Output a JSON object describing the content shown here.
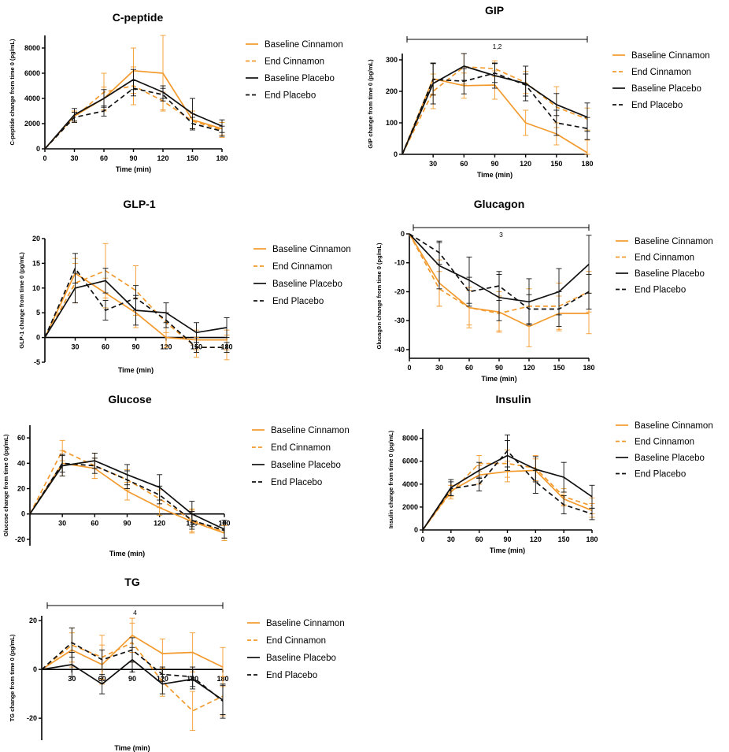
{
  "colors": {
    "cinnamon": "#F39A2D",
    "placebo": "#111111",
    "axis": "#000000"
  },
  "chart_data": [
    {
      "type": "line",
      "title": "C-peptide",
      "xlabel": "Time (min)",
      "ylabel": "C-peptide change from time 0 (pg/mL)",
      "x": [
        0,
        30,
        60,
        90,
        120,
        150,
        180
      ],
      "xticks": [
        "0",
        "30",
        "60",
        "90",
        "120",
        "150",
        "180"
      ],
      "ylim": [
        0,
        9000
      ],
      "yticks": [
        "0",
        "2000",
        "4000",
        "6000",
        "8000"
      ],
      "ytick_values": [
        0,
        2000,
        4000,
        6000,
        8000
      ],
      "legend_position": "right",
      "annotation": "",
      "series": [
        {
          "name": "Baseline Cinnamon",
          "style": "cin-solid",
          "values": [
            0,
            2600,
            4000,
            6200,
            6000,
            2300,
            1600
          ],
          "errors": [
            0,
            400,
            900,
            1800,
            3000,
            700,
            500
          ]
        },
        {
          "name": "End Cinnamon",
          "style": "cin-dash",
          "values": [
            0,
            2500,
            4500,
            5000,
            3800,
            2200,
            1500
          ],
          "errors": [
            0,
            400,
            1500,
            1500,
            700,
            600,
            600
          ]
        },
        {
          "name": "Baseline Placebo",
          "style": "pla-solid",
          "values": [
            0,
            2700,
            4000,
            5500,
            4500,
            2800,
            1800
          ],
          "errors": [
            0,
            500,
            700,
            800,
            500,
            1200,
            500
          ]
        },
        {
          "name": "End Placebo",
          "style": "pla-dash",
          "values": [
            0,
            2500,
            3000,
            4800,
            4300,
            2000,
            1400
          ],
          "errors": [
            0,
            400,
            400,
            600,
            500,
            500,
            400
          ]
        }
      ]
    },
    {
      "type": "line",
      "title": "GIP",
      "xlabel": "Time (min)",
      "ylabel": "GIP change from time 0 (pg/mL)",
      "x": [
        0,
        30,
        60,
        90,
        120,
        150,
        180
      ],
      "xticks": [
        "30",
        "60",
        "90",
        "120",
        "150",
        "180"
      ],
      "xtick_values": [
        30,
        60,
        90,
        120,
        150,
        180
      ],
      "ylim": [
        0,
        320
      ],
      "yticks": [
        "0",
        "100",
        "200",
        "300"
      ],
      "ytick_values": [
        0,
        100,
        200,
        300
      ],
      "legend_position": "right",
      "annotation": "1,2",
      "series": [
        {
          "name": "Baseline Cinnamon",
          "style": "cin-solid",
          "values": [
            0,
            240,
            218,
            220,
            100,
            65,
            5
          ],
          "errors": [
            0,
            50,
            40,
            45,
            40,
            35,
            40
          ]
        },
        {
          "name": "End Cinnamon",
          "style": "cin-dash",
          "values": [
            0,
            200,
            278,
            272,
            228,
            150,
            112
          ],
          "errors": [
            0,
            55,
            55,
            25,
            35,
            65,
            35
          ]
        },
        {
          "name": "Baseline Placebo",
          "style": "pla-solid",
          "values": [
            0,
            225,
            280,
            250,
            225,
            158,
            118
          ],
          "errors": [
            0,
            65,
            45,
            40,
            55,
            35,
            45
          ]
        },
        {
          "name": "End Placebo",
          "style": "pla-dash",
          "values": [
            0,
            238,
            232,
            258,
            220,
            100,
            82
          ],
          "errors": [
            0,
            50,
            40,
            30,
            35,
            40,
            35
          ]
        }
      ]
    },
    {
      "type": "line",
      "title": "GLP-1",
      "xlabel": "Time (min)",
      "ylabel": "GLP-1 change from time 0 (pg/mL)",
      "x": [
        0,
        30,
        60,
        90,
        120,
        150,
        180
      ],
      "xticks": [
        "30",
        "60",
        "90",
        "120",
        "150",
        "180"
      ],
      "xtick_values": [
        30,
        60,
        90,
        120,
        150,
        180
      ],
      "ylim": [
        -5,
        20
      ],
      "yticks": [
        "-5",
        "0",
        "5",
        "10",
        "15",
        "20"
      ],
      "ytick_values": [
        -5,
        0,
        5,
        10,
        15,
        20
      ],
      "legend_position": "right",
      "annotation": "",
      "series": [
        {
          "name": "Baseline Cinnamon",
          "style": "cin-solid",
          "values": [
            0,
            13,
            9,
            5,
            0,
            -0.5,
            -0.5
          ],
          "errors": [
            0,
            3,
            3,
            3,
            2,
            2,
            2
          ]
        },
        {
          "name": "End Cinnamon",
          "style": "cin-dash",
          "values": [
            0,
            11,
            13.5,
            9.5,
            3,
            -2,
            -2
          ],
          "errors": [
            0,
            4,
            5.5,
            5,
            2,
            2,
            2.5
          ]
        },
        {
          "name": "Baseline Placebo",
          "style": "pla-solid",
          "values": [
            0,
            10,
            11.5,
            5.5,
            5,
            1,
            2
          ],
          "errors": [
            0,
            3,
            2.5,
            3,
            2,
            2,
            2
          ]
        },
        {
          "name": "End Placebo",
          "style": "pla-dash",
          "values": [
            0,
            14,
            5.5,
            8,
            3.5,
            -2,
            -2
          ],
          "errors": [
            0,
            3,
            2,
            2.5,
            1.5,
            1,
            1
          ]
        }
      ]
    },
    {
      "type": "line",
      "title": "Glucagon",
      "xlabel": "Time (min)",
      "ylabel": "Glucagon change from time 0 (pg/mL)",
      "x": [
        0,
        30,
        60,
        90,
        120,
        150,
        180
      ],
      "xticks": [
        "0",
        "30",
        "60",
        "90",
        "120",
        "150",
        "180"
      ],
      "ylim": [
        -43,
        0
      ],
      "yticks": [
        "0",
        "-10",
        "-20",
        "-30",
        "-40"
      ],
      "ytick_values": [
        0,
        -10,
        -20,
        -30,
        -40
      ],
      "legend_position": "right",
      "annotation": "3",
      "series": [
        {
          "name": "Baseline Cinnamon",
          "style": "cin-solid",
          "values": [
            0,
            -17,
            -25.5,
            -27,
            -32,
            -27.5,
            -27.5
          ],
          "errors": [
            0,
            8,
            7,
            7,
            7,
            6,
            7
          ]
        },
        {
          "name": "End Cinnamon",
          "style": "cin-dash",
          "values": [
            0,
            -19,
            -25.5,
            -27.5,
            -25,
            -25,
            -20
          ],
          "errors": [
            0,
            6,
            6,
            6,
            6,
            8,
            7
          ]
        },
        {
          "name": "Baseline Placebo",
          "style": "pla-solid",
          "values": [
            0,
            -11,
            -16,
            -22,
            -23.5,
            -20,
            -10.5
          ],
          "errors": [
            0,
            8,
            8,
            8,
            8,
            8,
            10
          ]
        },
        {
          "name": "End Placebo",
          "style": "pla-dash",
          "values": [
            0,
            -6.5,
            -20,
            -18,
            -26,
            -26,
            -20
          ],
          "errors": [
            0,
            4,
            5,
            5,
            5,
            6,
            6
          ]
        }
      ]
    },
    {
      "type": "line",
      "title": "Glucose",
      "xlabel": "Time (min)",
      "ylabel": "Glucose change from time 0 (pg/mL)",
      "x": [
        0,
        30,
        60,
        90,
        120,
        150,
        180
      ],
      "xticks": [
        "30",
        "60",
        "90",
        "120",
        "150",
        "180"
      ],
      "xtick_values": [
        30,
        60,
        90,
        120,
        150,
        180
      ],
      "ylim": [
        -25,
        70
      ],
      "yticks": [
        "-20",
        "0",
        "20",
        "40",
        "60"
      ],
      "ytick_values": [
        -20,
        0,
        20,
        40,
        60
      ],
      "legend_position": "right",
      "annotation": "",
      "series": [
        {
          "name": "Baseline Cinnamon",
          "style": "cin-solid",
          "values": [
            0,
            40,
            36,
            18,
            5,
            -6,
            -15
          ],
          "errors": [
            0,
            10,
            8,
            7,
            6,
            9,
            6
          ]
        },
        {
          "name": "End Cinnamon",
          "style": "cin-dash",
          "values": [
            0,
            50,
            38,
            27,
            12,
            -5,
            -14
          ],
          "errors": [
            0,
            8,
            10,
            8,
            7,
            9,
            5
          ]
        },
        {
          "name": "Baseline Placebo",
          "style": "pla-solid",
          "values": [
            0,
            38,
            42,
            31,
            21,
            0,
            -12
          ],
          "errors": [
            0,
            8,
            6,
            8,
            10,
            10,
            7
          ]
        },
        {
          "name": "End Placebo",
          "style": "pla-dash",
          "values": [
            0,
            40,
            38,
            27,
            15,
            -5,
            -13
          ],
          "errors": [
            0,
            7,
            6,
            7,
            7,
            7,
            6
          ]
        }
      ]
    },
    {
      "type": "line",
      "title": "Insulin",
      "xlabel": "Time (min)",
      "ylabel": "Insulin change from time 0 (pg/mL)",
      "x": [
        0,
        30,
        60,
        90,
        120,
        150,
        180
      ],
      "xticks": [
        "0",
        "30",
        "60",
        "90",
        "120",
        "150",
        "180"
      ],
      "ylim": [
        0,
        8800
      ],
      "yticks": [
        "0",
        "2000",
        "4000",
        "6000",
        "8000"
      ],
      "ytick_values": [
        0,
        2000,
        4000,
        6000,
        8000
      ],
      "legend_position": "right",
      "annotation": "",
      "series": [
        {
          "name": "Baseline Cinnamon",
          "style": "cin-solid",
          "values": [
            0,
            3400,
            4800,
            5100,
            5200,
            2700,
            1700
          ],
          "errors": [
            0,
            500,
            800,
            900,
            1000,
            600,
            600
          ]
        },
        {
          "name": "End Cinnamon",
          "style": "cin-dash",
          "values": [
            0,
            3300,
            5800,
            5800,
            5400,
            2900,
            2100
          ],
          "errors": [
            0,
            600,
            700,
            1200,
            1100,
            700,
            700
          ]
        },
        {
          "name": "Baseline Placebo",
          "style": "pla-solid",
          "values": [
            0,
            3700,
            5200,
            6500,
            5300,
            4600,
            2900
          ],
          "errors": [
            0,
            700,
            700,
            1300,
            1100,
            1300,
            1000
          ]
        },
        {
          "name": "End Placebo",
          "style": "pla-dash",
          "values": [
            0,
            3600,
            4000,
            6900,
            4200,
            2200,
            1400
          ],
          "errors": [
            0,
            600,
            600,
            1400,
            1000,
            800,
            500
          ]
        }
      ]
    },
    {
      "type": "line",
      "title": "TG",
      "xlabel": "Time (min)",
      "ylabel": "TG change from time 0 (pg/mL)",
      "x": [
        0,
        30,
        60,
        90,
        120,
        150,
        180
      ],
      "xticks": [
        "30",
        "60",
        "90",
        "120",
        "150",
        "180"
      ],
      "xtick_values": [
        30,
        60,
        90,
        120,
        150,
        180
      ],
      "ylim": [
        -29,
        22
      ],
      "yticks": [
        "-20",
        "0",
        "20"
      ],
      "ytick_values": [
        -20,
        0,
        20
      ],
      "legend_position": "right",
      "annotation": "4",
      "series": [
        {
          "name": "Baseline Cinnamon",
          "style": "cin-solid",
          "values": [
            0,
            8,
            2,
            14,
            6.5,
            7,
            1
          ],
          "errors": [
            0,
            7,
            8,
            7,
            6,
            8,
            8
          ]
        },
        {
          "name": "End Cinnamon",
          "style": "cin-dash",
          "values": [
            0,
            10,
            5,
            11,
            -5,
            -17,
            -11
          ],
          "errors": [
            0,
            7,
            9,
            8,
            6,
            8,
            8
          ]
        },
        {
          "name": "Baseline Placebo",
          "style": "pla-solid",
          "values": [
            0,
            2,
            -6,
            4,
            -6,
            -4,
            -12.5
          ],
          "errors": [
            0,
            5,
            4,
            5,
            4,
            4,
            6
          ]
        },
        {
          "name": "End Placebo",
          "style": "pla-dash",
          "values": [
            0,
            11,
            4,
            8,
            -2,
            -3,
            -13
          ],
          "errors": [
            0,
            6,
            4,
            5,
            3,
            4,
            7
          ]
        }
      ]
    }
  ]
}
